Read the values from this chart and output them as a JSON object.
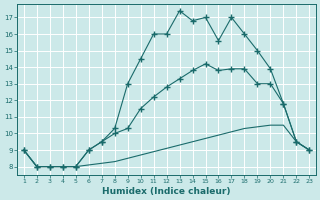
{
  "xlabel": "Humidex (Indice chaleur)",
  "x_ticks": [
    1,
    2,
    3,
    4,
    5,
    6,
    7,
    8,
    9,
    10,
    11,
    12,
    13,
    14,
    15,
    16,
    17,
    18,
    19,
    20,
    21,
    22,
    23
  ],
  "y_ticks": [
    8,
    9,
    10,
    11,
    12,
    13,
    14,
    15,
    16,
    17
  ],
  "ylim": [
    7.5,
    17.8
  ],
  "xlim": [
    0.5,
    23.5
  ],
  "background_color": "#cce9e9",
  "line_color": "#1a6b6b",
  "grid_color": "#ffffff",
  "line1_x": [
    1,
    2,
    3,
    4,
    5,
    6,
    7,
    8,
    9,
    10,
    11,
    12,
    13,
    14,
    15,
    16,
    17,
    18,
    19,
    20,
    21,
    22,
    23
  ],
  "line1_y": [
    9.0,
    8.0,
    8.0,
    8.0,
    8.0,
    9.0,
    9.5,
    10.3,
    13.0,
    14.5,
    16.0,
    16.0,
    17.4,
    16.8,
    17.0,
    15.6,
    17.0,
    16.0,
    15.0,
    13.9,
    11.8,
    9.5,
    9.0
  ],
  "line2_x": [
    1,
    2,
    3,
    4,
    5,
    6,
    7,
    8,
    9,
    10,
    11,
    12,
    13,
    14,
    15,
    16,
    17,
    18,
    19,
    20,
    21,
    22,
    23
  ],
  "line2_y": [
    9.0,
    8.0,
    8.0,
    8.0,
    8.0,
    9.0,
    9.5,
    10.0,
    10.3,
    11.5,
    12.2,
    12.8,
    13.3,
    13.8,
    14.2,
    13.8,
    13.9,
    13.9,
    13.0,
    13.0,
    11.8,
    9.5,
    9.0
  ],
  "line3_x": [
    1,
    2,
    3,
    4,
    5,
    6,
    7,
    8,
    9,
    10,
    11,
    12,
    13,
    14,
    15,
    16,
    17,
    18,
    19,
    20,
    21,
    22,
    23
  ],
  "line3_y": [
    9.0,
    8.0,
    8.0,
    8.0,
    8.0,
    8.1,
    8.2,
    8.3,
    8.5,
    8.7,
    8.9,
    9.1,
    9.3,
    9.5,
    9.7,
    9.9,
    10.1,
    10.3,
    10.4,
    10.5,
    10.5,
    9.5,
    9.0
  ]
}
